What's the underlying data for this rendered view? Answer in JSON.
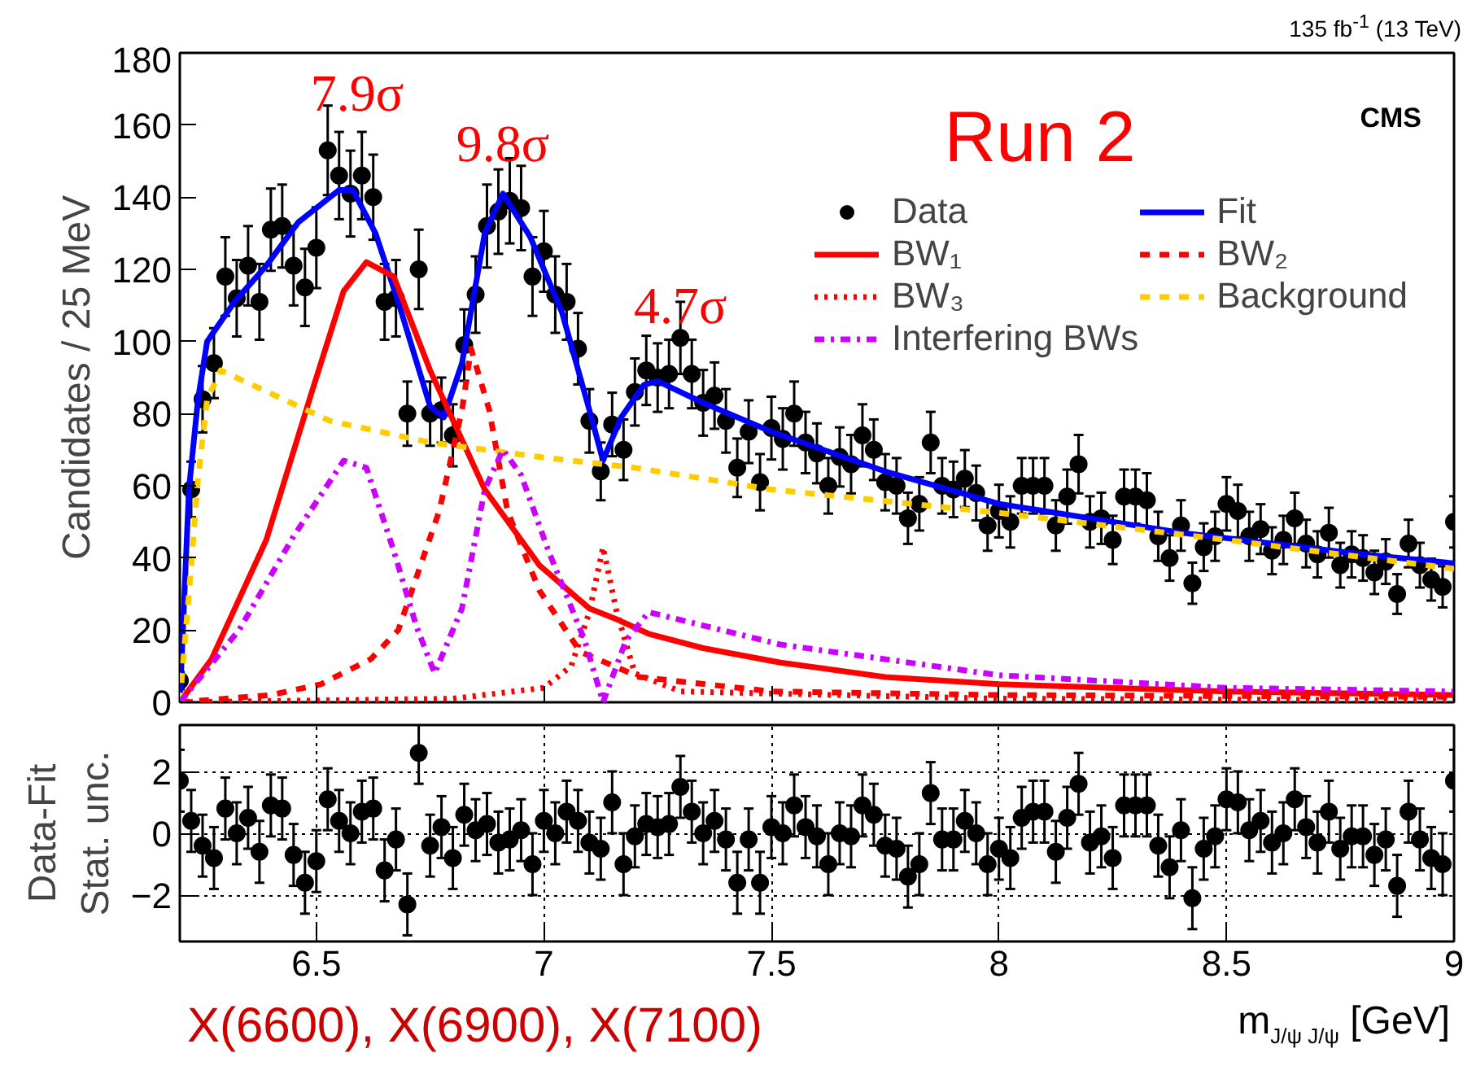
{
  "chart_data": [
    {
      "type": "scatter",
      "ylabel": "Candidates / 25 MeV",
      "xlim": [
        6.2,
        9.0
      ],
      "ylim": [
        0,
        180
      ],
      "xticks": [
        6.5,
        7,
        7.5,
        8,
        8.5,
        9
      ],
      "yticks": [
        0,
        20,
        40,
        60,
        80,
        100,
        120,
        140,
        160,
        180
      ],
      "tick_labels": "y",
      "grid": false,
      "legend": "top right",
      "series": [
        {
          "name": "Data",
          "type": "scatter",
          "marker": "circle",
          "color": "#000000",
          "x": [
            6.2,
            6.225,
            6.25,
            6.275,
            6.3,
            6.325,
            6.35,
            6.375,
            6.4,
            6.425,
            6.45,
            6.475,
            6.5,
            6.525,
            6.55,
            6.575,
            6.6,
            6.625,
            6.65,
            6.675,
            6.7,
            6.725,
            6.75,
            6.775,
            6.8,
            6.825,
            6.85,
            6.875,
            6.9,
            6.925,
            6.95,
            6.975,
            7.0,
            7.025,
            7.05,
            7.075,
            7.1,
            7.125,
            7.15,
            7.175,
            7.2,
            7.225,
            7.25,
            7.275,
            7.3,
            7.325,
            7.35,
            7.375,
            7.4,
            7.425,
            7.45,
            7.475,
            7.5,
            7.525,
            7.55,
            7.575,
            7.6,
            7.625,
            7.65,
            7.675,
            7.7,
            7.725,
            7.75,
            7.775,
            7.8,
            7.825,
            7.85,
            7.875,
            7.9,
            7.925,
            7.95,
            7.975,
            8.0,
            8.025,
            8.05,
            8.075,
            8.1,
            8.125,
            8.15,
            8.175,
            8.2,
            8.225,
            8.25,
            8.275,
            8.3,
            8.325,
            8.35,
            8.375,
            8.4,
            8.425,
            8.45,
            8.475,
            8.5,
            8.525,
            8.55,
            8.575,
            8.6,
            8.625,
            8.65,
            8.675,
            8.7,
            8.725,
            8.75,
            8.775,
            8.8,
            8.825,
            8.85,
            8.875,
            8.9,
            8.925,
            8.95,
            8.975,
            9.0
          ],
          "values": [
            6,
            59,
            84,
            94,
            118,
            112,
            121,
            111,
            131,
            132,
            121,
            115,
            126,
            153,
            146,
            141,
            146,
            140,
            111,
            112,
            80,
            120,
            80,
            81,
            74,
            99,
            113,
            132,
            136,
            139,
            137,
            118,
            125,
            113,
            111,
            98,
            78,
            64,
            77,
            70,
            86,
            92,
            90,
            91,
            101,
            91,
            83,
            85,
            78,
            65,
            75,
            61,
            76,
            73,
            80,
            72,
            69,
            60,
            68,
            66,
            74,
            70,
            61,
            60,
            51,
            55,
            72,
            60,
            59,
            62,
            58,
            49,
            53,
            50,
            60,
            60,
            60,
            49,
            57,
            66,
            50,
            51,
            45,
            57,
            57,
            56,
            46,
            40,
            49,
            33,
            43,
            46,
            55,
            53,
            46,
            48,
            42,
            45,
            51,
            44,
            41,
            47,
            38,
            41,
            40,
            36,
            39,
            30,
            44,
            38,
            34,
            32,
            50
          ],
          "errors": [
            2.4,
            7.7,
            9.2,
            9.7,
            10.9,
            10.6,
            11,
            10.5,
            11.4,
            11.5,
            11,
            10.7,
            11.2,
            12.4,
            12.1,
            11.9,
            12.1,
            11.8,
            10.5,
            10.6,
            8.9,
            11,
            8.9,
            9,
            8.6,
            9.9,
            10.6,
            11.5,
            11.7,
            11.8,
            11.7,
            10.9,
            11.2,
            10.6,
            10.5,
            9.9,
            8.8,
            8,
            8.8,
            8.4,
            9.3,
            9.6,
            9.5,
            9.5,
            10,
            9.5,
            9.1,
            9.2,
            8.8,
            8.1,
            8.7,
            7.8,
            8.7,
            8.5,
            8.9,
            8.5,
            8.3,
            7.7,
            8.2,
            8.1,
            8.6,
            8.4,
            7.8,
            7.7,
            7.1,
            7.4,
            8.5,
            7.7,
            7.7,
            7.9,
            7.6,
            7,
            7.3,
            7.1,
            7.7,
            7.7,
            7.7,
            7,
            7.5,
            8.1,
            7.1,
            7.1,
            6.7,
            7.5,
            7.5,
            7.5,
            6.8,
            6.3,
            7,
            5.7,
            6.6,
            6.8,
            7.4,
            7.3,
            6.8,
            6.9,
            6.5,
            6.7,
            7.1,
            6.6,
            6.4,
            6.9,
            6.2,
            6.4,
            6.3,
            6,
            6.2,
            5.5,
            6.6,
            6.2,
            5.8,
            5.7,
            7.1
          ]
        },
        {
          "name": "Fit",
          "type": "line",
          "line_style": "solid",
          "color": "#0000ff",
          "x": [
            6.2,
            6.22,
            6.24,
            6.26,
            6.32,
            6.39,
            6.46,
            6.55,
            6.58,
            6.63,
            6.68,
            6.75,
            6.78,
            6.82,
            6.87,
            6.91,
            6.97,
            7.04,
            7.1,
            7.13,
            7.17,
            7.22,
            7.25,
            7.35,
            7.5,
            7.75,
            8.0,
            8.2,
            8.4,
            8.6,
            8.8,
            9.0
          ],
          "values": [
            0,
            59,
            84,
            100,
            111,
            121,
            133,
            142,
            142,
            130,
            111,
            82,
            79,
            94,
            130,
            141,
            129,
            108,
            81,
            67,
            79,
            88,
            89,
            83,
            75,
            64,
            55,
            51,
            47,
            44,
            41,
            38.5
          ]
        },
        {
          "name": "BW₁",
          "type": "line",
          "line_style": "solid",
          "color": "#ff0000",
          "x": [
            6.2,
            6.27,
            6.39,
            6.49,
            6.56,
            6.61,
            6.67,
            6.75,
            6.87,
            6.99,
            7.1,
            7.16,
            7.23,
            7.35,
            7.52,
            7.75,
            8.0,
            8.5,
            9.0
          ],
          "values": [
            0,
            12,
            45,
            86,
            114,
            122,
            118,
            92,
            59,
            38,
            26,
            23,
            19,
            15,
            11,
            7,
            5,
            3,
            2
          ]
        },
        {
          "name": "BW₂",
          "type": "line",
          "line_style": "dashed",
          "color": "#ff0000",
          "x": [
            6.2,
            6.4,
            6.51,
            6.62,
            6.68,
            6.77,
            6.82,
            6.84,
            6.88,
            6.92,
            6.99,
            7.08,
            7.21,
            7.5,
            8.0,
            9.0
          ],
          "values": [
            0,
            2,
            5,
            12,
            20,
            53,
            81,
            98,
            81,
            53,
            31,
            14,
            7,
            3,
            2,
            1.5
          ]
        },
        {
          "name": "BW₃",
          "type": "line",
          "line_style": "dotted",
          "color": "#ff0000",
          "x": [
            6.2,
            6.8,
            7.0,
            7.06,
            7.1,
            7.13,
            7.16,
            7.2,
            7.3,
            8.0,
            9.0
          ],
          "values": [
            0,
            1,
            4,
            10,
            25,
            43,
            25,
            8,
            3,
            1,
            0.5
          ]
        },
        {
          "name": "Background",
          "type": "line",
          "line_style": "dashed",
          "color": "#ffcc00",
          "x": [
            6.2,
            6.22,
            6.24,
            6.26,
            6.29,
            6.53,
            6.75,
            6.99,
            7.2,
            7.5,
            8.0,
            8.5,
            9.0
          ],
          "values": [
            0,
            30,
            62,
            84,
            92,
            78,
            72,
            68,
            65,
            59,
            52.5,
            45,
            37
          ]
        },
        {
          "name": "Interfering BWs",
          "type": "line",
          "line_style": "dashdot",
          "color": "#cc00ff",
          "x": [
            6.2,
            6.33,
            6.45,
            6.56,
            6.61,
            6.67,
            6.72,
            6.76,
            6.82,
            6.87,
            6.91,
            6.95,
            7.01,
            7.09,
            7.13,
            7.18,
            7.23,
            7.52,
            8.0,
            8.5,
            9.0
          ],
          "values": [
            0,
            20,
            46,
            67,
            65,
            42,
            21,
            8,
            26,
            59,
            70,
            63,
            42,
            17,
            0,
            17,
            25,
            16,
            7.5,
            4,
            3
          ]
        }
      ],
      "annotations": [
        "7.9σ",
        "9.8σ",
        "4.7σ",
        "Run 2",
        "CMS",
        "135 fb$^{-1}$ (13 TeV)"
      ]
    },
    {
      "type": "scatter",
      "marker": "circle",
      "xlabel": "m$_{J/ψ J/ψ}$ [GeV]",
      "ylabel": "Data-Fit\nStat. unc.",
      "xlim": [
        6.2,
        9.0
      ],
      "ylim": [
        -3.5,
        3.5
      ],
      "xticks": [
        6.5,
        7,
        7.5,
        8,
        8.5,
        9
      ],
      "yticks": [
        -2,
        0,
        2
      ],
      "grid": true,
      "color": "#000000",
      "x": [
        6.2,
        6.225,
        6.25,
        6.275,
        6.3,
        6.325,
        6.35,
        6.375,
        6.4,
        6.425,
        6.45,
        6.475,
        6.5,
        6.525,
        6.55,
        6.575,
        6.6,
        6.625,
        6.65,
        6.675,
        6.7,
        6.725,
        6.75,
        6.775,
        6.8,
        6.825,
        6.85,
        6.875,
        6.9,
        6.925,
        6.95,
        6.975,
        7.0,
        7.025,
        7.05,
        7.075,
        7.1,
        7.125,
        7.15,
        7.175,
        7.2,
        7.225,
        7.25,
        7.275,
        7.3,
        7.325,
        7.35,
        7.375,
        7.4,
        7.425,
        7.45,
        7.475,
        7.5,
        7.525,
        7.55,
        7.575,
        7.6,
        7.625,
        7.65,
        7.675,
        7.7,
        7.725,
        7.75,
        7.775,
        7.8,
        7.825,
        7.85,
        7.875,
        7.9,
        7.925,
        7.95,
        7.975,
        8.0,
        8.025,
        8.05,
        8.075,
        8.1,
        8.125,
        8.15,
        8.175,
        8.2,
        8.225,
        8.25,
        8.275,
        8.3,
        8.325,
        8.35,
        8.375,
        8.4,
        8.425,
        8.45,
        8.475,
        8.5,
        8.525,
        8.55,
        8.575,
        8.6,
        8.625,
        8.65,
        8.675,
        8.7,
        8.725,
        8.75,
        8.775,
        8.8,
        8.825,
        8.85,
        8.875,
        8.9,
        8.925,
        8.95,
        8.975,
        9.0
      ],
      "values": [
        1.7,
        0.4,
        -0.4,
        -0.8,
        0.8,
        0,
        0.5,
        -0.6,
        0.9,
        0.8,
        -0.7,
        -1.6,
        -0.9,
        1.1,
        0.4,
        0,
        0.7,
        0.8,
        -1.2,
        -0.2,
        -2.3,
        2.6,
        -0.4,
        0.2,
        -0.8,
        0.6,
        0.1,
        0.3,
        -0.3,
        -0.2,
        0.1,
        -1,
        0.4,
        0,
        0.7,
        0.4,
        -0.3,
        -0.5,
        1,
        -1,
        -0.1,
        0.3,
        0.2,
        0.3,
        1.5,
        0.7,
        0,
        0.4,
        -0.2,
        -1.6,
        -0.2,
        -1.6,
        0.2,
        0,
        0.9,
        0.2,
        -0.1,
        -1,
        0,
        -0.1,
        0.9,
        0.6,
        -0.4,
        -0.5,
        -1.4,
        -1,
        1.3,
        -0.2,
        -0.2,
        0.4,
        0,
        -1,
        -0.5,
        -0.8,
        0.5,
        0.7,
        0.7,
        -0.6,
        0.5,
        1.6,
        -0.3,
        -0.1,
        -0.8,
        0.9,
        0.9,
        0.9,
        -0.4,
        -1.1,
        0.1,
        -2.1,
        -0.5,
        -0.1,
        1.1,
        1,
        0.1,
        0.4,
        -0.3,
        0,
        1.1,
        0.2,
        -0.3,
        0.7,
        -0.5,
        -0.1,
        -0.1,
        -0.7,
        -0.2,
        -1.7,
        0.7,
        -0.2,
        -0.8,
        -1,
        1.7
      ],
      "errors": [
        1,
        1,
        1,
        1,
        1,
        1,
        1,
        1,
        1,
        1,
        1,
        1,
        1,
        1,
        1,
        1,
        1,
        1,
        1,
        1,
        1,
        1,
        1,
        1,
        1,
        1,
        1,
        1,
        1,
        1,
        1,
        1,
        1,
        1,
        1,
        1,
        1,
        1,
        1,
        1,
        1,
        1,
        1,
        1,
        1,
        1,
        1,
        1,
        1,
        1,
        1,
        1,
        1,
        1,
        1,
        1,
        1,
        1,
        1,
        1,
        1,
        1,
        1,
        1,
        1,
        1,
        1,
        1,
        1,
        1,
        1,
        1,
        1,
        1,
        1,
        1,
        1,
        1,
        1,
        1,
        1,
        1,
        1,
        1,
        1,
        1,
        1,
        1,
        1,
        1,
        1,
        1,
        1,
        1,
        1,
        1,
        1,
        1,
        1,
        1,
        1,
        1,
        1,
        1,
        1,
        1,
        1,
        1,
        1,
        1,
        1,
        1,
        1
      ],
      "annotations": [
        "X(6600), X(6900), X(7100)"
      ]
    }
  ]
}
